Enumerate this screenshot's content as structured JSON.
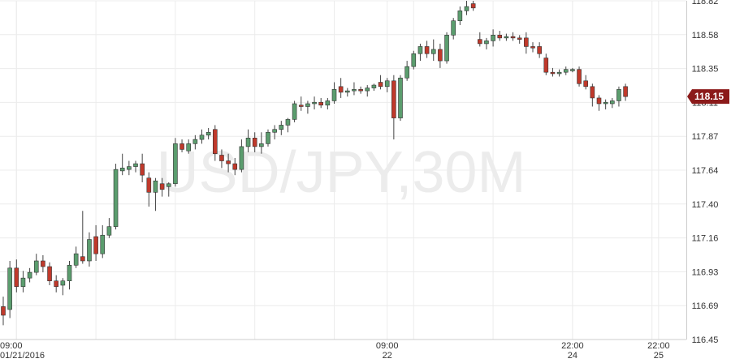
{
  "watermark": "USD/JPY,30M",
  "colors": {
    "up": "#5b9d6e",
    "down": "#c0392b",
    "grid": "#ececec",
    "tag": "#8b1a1a"
  },
  "current_price": "118.15",
  "chart_data": {
    "type": "candlestick",
    "symbol": "USD/JPY",
    "timeframe": "30M",
    "ylim": [
      116.45,
      118.82
    ],
    "yticks": [
      "118.82",
      "118.58",
      "118.35",
      "118.11",
      "117.87",
      "117.64",
      "117.40",
      "117.16",
      "116.93",
      "116.69",
      "116.45"
    ],
    "xticks": [
      {
        "index": 2,
        "time": "09:00",
        "date": "01/21/2016"
      },
      {
        "index": 58,
        "time": "09:00",
        "date": "22"
      },
      {
        "index": 86,
        "time": "22:00",
        "date": "24"
      },
      {
        "index": 99,
        "time": "22:00",
        "date": "25"
      }
    ],
    "grid": true,
    "candles": [
      [
        116.68,
        116.75,
        116.55,
        116.62
      ],
      [
        116.66,
        117.0,
        116.6,
        116.95
      ],
      [
        116.95,
        117.01,
        116.78,
        116.82
      ],
      [
        116.82,
        116.93,
        116.78,
        116.88
      ],
      [
        116.88,
        116.95,
        116.85,
        116.92
      ],
      [
        116.92,
        117.05,
        116.9,
        117.0
      ],
      [
        117.0,
        117.04,
        116.92,
        116.96
      ],
      [
        116.96,
        116.99,
        116.83,
        116.86
      ],
      [
        116.86,
        116.9,
        116.78,
        116.82
      ],
      [
        116.83,
        116.88,
        116.76,
        116.86
      ],
      [
        116.86,
        117.0,
        116.8,
        116.97
      ],
      [
        116.97,
        117.1,
        116.95,
        117.05
      ],
      [
        117.03,
        117.35,
        116.98,
        117.0
      ],
      [
        117.0,
        117.2,
        116.96,
        117.15
      ],
      [
        117.17,
        117.25,
        117.0,
        117.05
      ],
      [
        117.05,
        117.25,
        117.02,
        117.18
      ],
      [
        117.18,
        117.3,
        117.16,
        117.24
      ],
      [
        117.24,
        117.68,
        117.22,
        117.64
      ],
      [
        117.63,
        117.75,
        117.6,
        117.65
      ],
      [
        117.64,
        117.7,
        117.6,
        117.66
      ],
      [
        117.66,
        117.7,
        117.62,
        117.68
      ],
      [
        117.68,
        117.75,
        117.55,
        117.6
      ],
      [
        117.58,
        117.62,
        117.38,
        117.48
      ],
      [
        117.48,
        117.58,
        117.35,
        117.56
      ],
      [
        117.54,
        117.58,
        117.45,
        117.5
      ],
      [
        117.52,
        117.55,
        117.45,
        117.54
      ],
      [
        117.54,
        117.86,
        117.52,
        117.82
      ],
      [
        117.82,
        117.85,
        117.76,
        117.78
      ],
      [
        117.77,
        117.85,
        117.75,
        117.82
      ],
      [
        117.82,
        117.88,
        117.78,
        117.85
      ],
      [
        117.85,
        117.92,
        117.82,
        117.88
      ],
      [
        117.88,
        117.93,
        117.85,
        117.9
      ],
      [
        117.92,
        117.95,
        117.7,
        117.75
      ],
      [
        117.74,
        117.78,
        117.65,
        117.7
      ],
      [
        117.7,
        117.75,
        117.62,
        117.68
      ],
      [
        117.68,
        117.72,
        117.6,
        117.64
      ],
      [
        117.64,
        117.85,
        117.62,
        117.8
      ],
      [
        117.8,
        117.92,
        117.76,
        117.86
      ],
      [
        117.86,
        117.9,
        117.76,
        117.8
      ],
      [
        117.8,
        117.9,
        117.75,
        117.82
      ],
      [
        117.82,
        117.92,
        117.8,
        117.9
      ],
      [
        117.9,
        117.95,
        117.85,
        117.92
      ],
      [
        117.92,
        117.98,
        117.88,
        117.95
      ],
      [
        117.95,
        118.0,
        117.9,
        117.99
      ],
      [
        117.99,
        118.12,
        117.97,
        118.1
      ],
      [
        118.09,
        118.15,
        118.05,
        118.08
      ],
      [
        118.08,
        118.12,
        118.03,
        118.1
      ],
      [
        118.1,
        118.15,
        118.06,
        118.11
      ],
      [
        118.11,
        118.14,
        118.07,
        118.09
      ],
      [
        118.09,
        118.14,
        118.06,
        118.12
      ],
      [
        118.12,
        118.25,
        118.1,
        118.2
      ],
      [
        118.22,
        118.28,
        118.14,
        118.18
      ],
      [
        118.18,
        118.21,
        118.15,
        118.19
      ],
      [
        118.19,
        118.25,
        118.16,
        118.2
      ],
      [
        118.2,
        118.22,
        118.17,
        118.19
      ],
      [
        118.19,
        118.23,
        118.15,
        118.21
      ],
      [
        118.21,
        118.24,
        118.19,
        118.23
      ],
      [
        118.25,
        118.3,
        118.2,
        118.22
      ],
      [
        118.22,
        118.28,
        118.18,
        118.26
      ],
      [
        118.26,
        118.3,
        117.85,
        118.0
      ],
      [
        118.0,
        118.3,
        117.98,
        118.28
      ],
      [
        118.28,
        118.4,
        118.26,
        118.36
      ],
      [
        118.36,
        118.47,
        118.34,
        118.45
      ],
      [
        118.45,
        118.52,
        118.4,
        118.5
      ],
      [
        118.5,
        118.54,
        118.42,
        118.45
      ],
      [
        118.45,
        118.55,
        118.4,
        118.48
      ],
      [
        118.48,
        118.52,
        118.35,
        118.4
      ],
      [
        118.4,
        118.6,
        118.38,
        118.58
      ],
      [
        118.58,
        118.7,
        118.55,
        118.68
      ],
      [
        118.68,
        118.78,
        118.65,
        118.75
      ],
      [
        118.75,
        118.82,
        118.72,
        118.78
      ],
      [
        118.8,
        118.82,
        118.75,
        118.77
      ],
      [
        118.55,
        118.6,
        118.5,
        118.52
      ],
      [
        118.52,
        118.56,
        118.48,
        118.54
      ],
      [
        118.54,
        118.62,
        118.5,
        118.58
      ],
      [
        118.58,
        118.61,
        118.54,
        118.56
      ],
      [
        118.56,
        118.59,
        118.54,
        118.57
      ],
      [
        118.57,
        118.6,
        118.54,
        118.56
      ],
      [
        118.56,
        118.58,
        118.52,
        118.55
      ],
      [
        118.56,
        118.6,
        118.45,
        118.5
      ],
      [
        118.5,
        118.53,
        118.46,
        118.49
      ],
      [
        118.5,
        118.53,
        118.42,
        118.45
      ],
      [
        118.42,
        118.45,
        118.3,
        118.32
      ],
      [
        118.32,
        118.35,
        118.29,
        118.31
      ],
      [
        118.31,
        118.34,
        118.29,
        118.32
      ],
      [
        118.32,
        118.36,
        118.3,
        118.34
      ],
      [
        118.33,
        118.35,
        118.32,
        118.34
      ],
      [
        118.34,
        118.36,
        118.22,
        118.24
      ],
      [
        118.26,
        118.3,
        118.2,
        118.22
      ],
      [
        118.22,
        118.24,
        118.08,
        118.14
      ],
      [
        118.14,
        118.16,
        118.05,
        118.1
      ],
      [
        118.1,
        118.13,
        118.06,
        118.11
      ],
      [
        118.1,
        118.14,
        118.07,
        118.12
      ],
      [
        118.12,
        118.22,
        118.08,
        118.2
      ],
      [
        118.22,
        118.24,
        118.12,
        118.15
      ]
    ]
  }
}
